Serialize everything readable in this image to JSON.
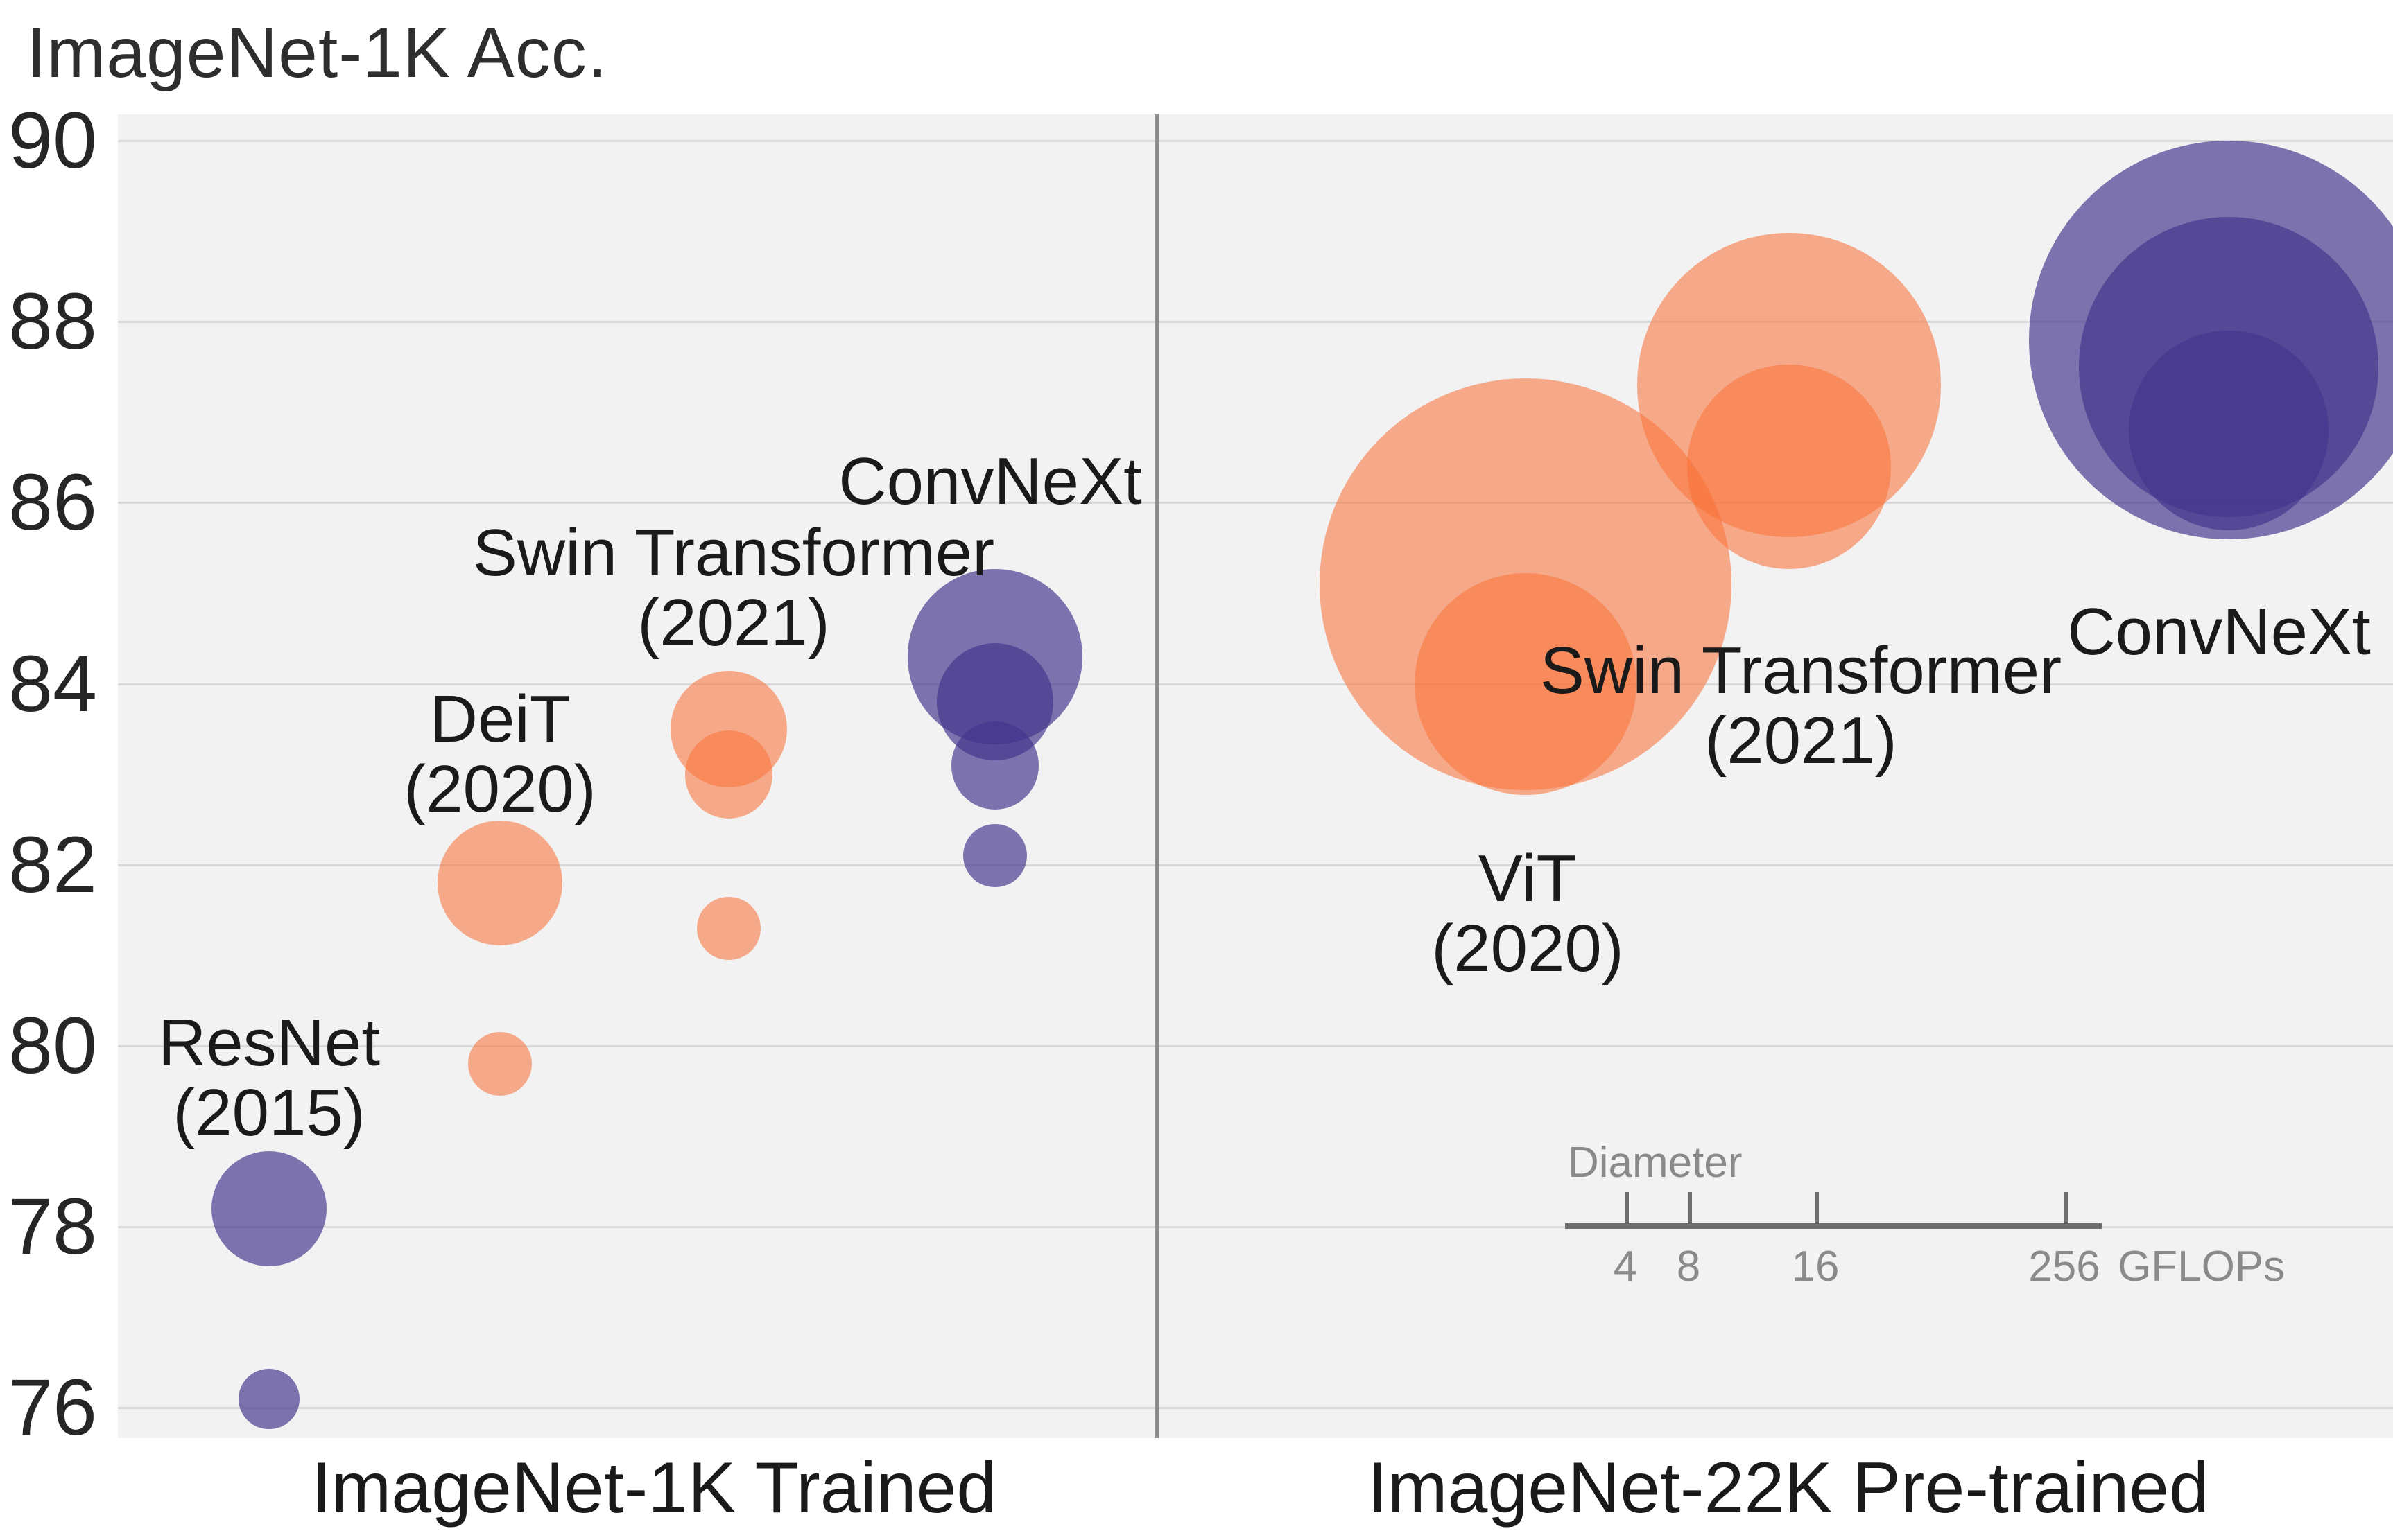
{
  "title": "ImageNet-1K Acc.",
  "colors": {
    "orange": "#F97238",
    "orange_alpha": 0.57,
    "purple": "#42348C",
    "purple_alpha": 0.67,
    "plot_background": "#f2f2f3",
    "gridline": "#d9d9d9",
    "divider": "#8c8c8c",
    "legend_gray": "#8a8a8a",
    "text": "#1a1a1a"
  },
  "chart_data": {
    "type": "scatter",
    "subtype": "bubble",
    "title": "ImageNet-1K Acc.",
    "ylabel": "ImageNet-1K Acc.",
    "xlabel": "",
    "y_ticks": [
      90,
      88,
      86,
      84,
      82,
      80,
      78,
      76
    ],
    "ylim": [
      75.5,
      90.3
    ],
    "grid": "horizontal",
    "size_encoding": "bubble area proportional to GFLOPs",
    "panels": [
      {
        "label": "ImageNet-1K Trained",
        "families": [
          {
            "name": "ResNet",
            "annotation": "ResNet\n(2015)",
            "color": "purple",
            "points": [
              {
                "acc": 76.1,
                "gflops": 4.1
              },
              {
                "acc": 78.2,
                "gflops": 15.0
              }
            ]
          },
          {
            "name": "DeiT",
            "annotation": "DeiT\n(2020)",
            "color": "orange",
            "points": [
              {
                "acc": 79.8,
                "gflops": 4.6
              },
              {
                "acc": 81.8,
                "gflops": 17.6
              }
            ]
          },
          {
            "name": "Swin Transformer",
            "annotation": "Swin Transformer\n(2021)",
            "color": "orange",
            "points": [
              {
                "acc": 81.3,
                "gflops": 4.5
              },
              {
                "acc": 83.0,
                "gflops": 8.7
              },
              {
                "acc": 83.5,
                "gflops": 15.4
              }
            ]
          },
          {
            "name": "ConvNeXt",
            "annotation": "ConvNeXt",
            "color": "purple",
            "points": [
              {
                "acc": 82.1,
                "gflops": 4.5
              },
              {
                "acc": 83.1,
                "gflops": 8.7
              },
              {
                "acc": 83.8,
                "gflops": 15.4
              },
              {
                "acc": 84.3,
                "gflops": 34.4
              }
            ]
          }
        ]
      },
      {
        "label": "ImageNet-22K Pre-trained",
        "families": [
          {
            "name": "ViT",
            "annotation": "ViT\n(2020)",
            "color": "orange",
            "points": [
              {
                "acc": 84.0,
                "gflops": 55.4
              },
              {
                "acc": 85.1,
                "gflops": 190.7
              }
            ]
          },
          {
            "name": "Swin Transformer",
            "annotation": "Swin Transformer\n(2021)",
            "color": "orange",
            "points": [
              {
                "acc": 86.4,
                "gflops": 47.0
              },
              {
                "acc": 87.3,
                "gflops": 104.0
              }
            ]
          },
          {
            "name": "ConvNeXt",
            "annotation": "ConvNeXt",
            "color": "purple",
            "points": [
              {
                "acc": 86.8,
                "gflops": 45.0
              },
              {
                "acc": 87.5,
                "gflops": 101.0
              },
              {
                "acc": 87.8,
                "gflops": 179.0
              }
            ]
          }
        ]
      }
    ],
    "legend": {
      "title": "Diameter",
      "ticks": [
        "4",
        "8",
        "16",
        "256"
      ],
      "tick_gflops": [
        4,
        8,
        16,
        256
      ],
      "unit_label": "GFLOPs"
    }
  }
}
